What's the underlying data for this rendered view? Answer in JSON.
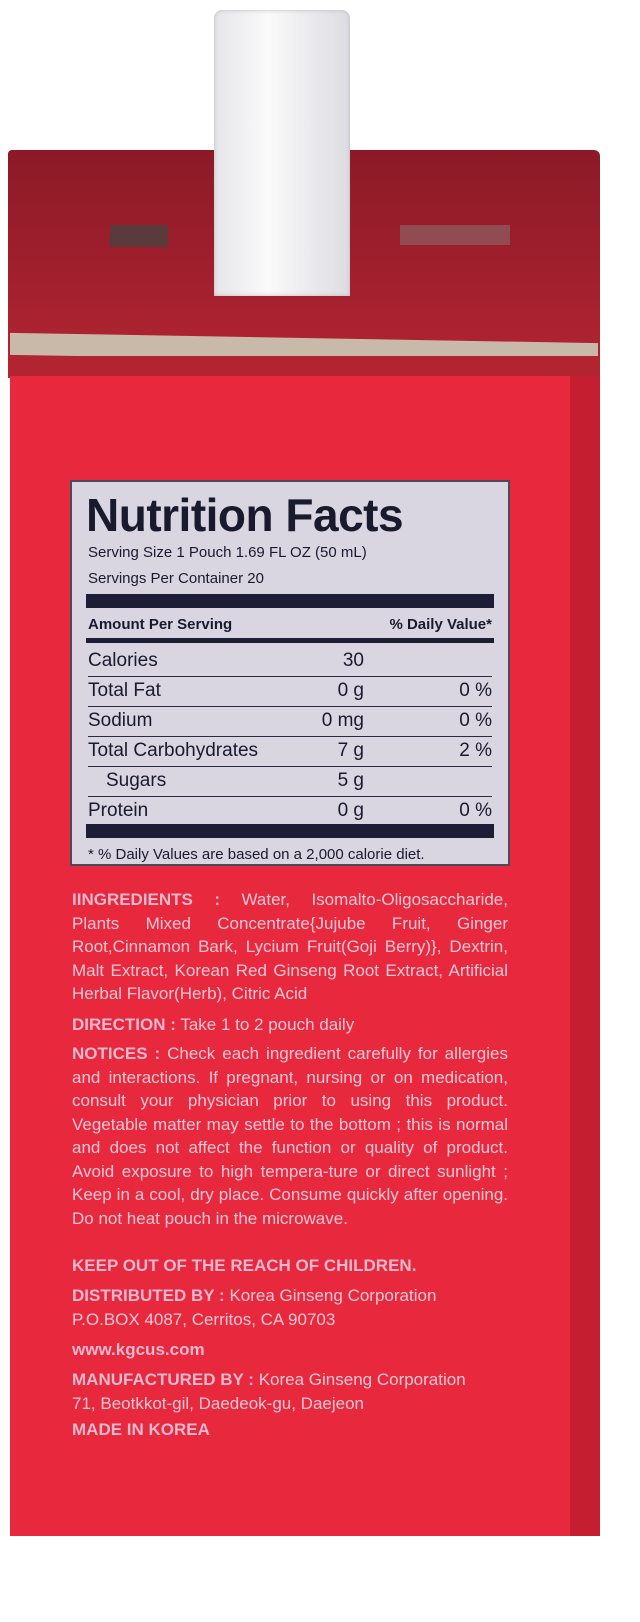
{
  "nutrition": {
    "title": "Nutrition Facts",
    "serving_size": "Serving Size 1 Pouch 1.69 FL OZ (50 mL)",
    "servings_per_container": "Servings Per Container 20",
    "amount_header": "Amount Per Serving",
    "dv_header": "% Daily Value*",
    "rows": [
      {
        "name": "Calories",
        "amount": "30",
        "dv": ""
      },
      {
        "name": "Total Fat",
        "amount": "0 g",
        "dv": "0 %"
      },
      {
        "name": "Sodium",
        "amount": "0 mg",
        "dv": "0 %"
      },
      {
        "name": "Total Carbohydrates",
        "amount": "7 g",
        "dv": "2 %"
      },
      {
        "name": "Sugars",
        "amount": "5 g",
        "dv": ""
      },
      {
        "name": "Protein",
        "amount": "0 g",
        "dv": "0 %"
      }
    ],
    "footnote": "* % Daily Values are based on a 2,000 calorie diet."
  },
  "info": {
    "ingredients_label": "IINGREDIENTS :",
    "ingredients": "Water, Isomalto-Oligosaccharide, Plants Mixed Concentrate{Jujube Fruit, Ginger Root,Cinnamon Bark, Lycium Fruit(Goji Berry)}, Dextrin, Malt Extract, Korean Red Ginseng Root Extract, Artificial Herbal Flavor(Herb), Citric Acid",
    "direction_label": "DIRECTION :",
    "direction": "Take 1 to 2 pouch daily",
    "notices_label": "NOTICES :",
    "notices": "Check each ingredient carefully for allergies and interactions. If pregnant, nursing or on medication, consult your physician prior to using this product. Vegetable matter may settle to the bottom ; this is normal and does not affect the function or quality of product. Avoid exposure to high tempera-ture or direct sunlight ; Keep in a cool, dry place. Consume quickly after opening. Do not heat pouch in the microwave.",
    "warning": "KEEP OUT OF THE REACH OF CHILDREN.",
    "distributed_label": "DISTRIBUTED BY :",
    "distributed": "Korea Ginseng Corporation",
    "distributed_address": "P.O.BOX 4087, Cerritos, CA 90703",
    "website": "www.kgcus.com",
    "manufactured_label": "MANUFACTURED BY :",
    "manufactured": "Korea Ginseng Corporation",
    "manufactured_address": "71, Beotkkot-gil, Daedeok-gu, Daejeon",
    "origin": "MADE IN KOREA"
  },
  "colors": {
    "box_red": "#e8283c",
    "lid_red": "#a3202e",
    "panel": "#d9d6e2",
    "text_pink": "#f2c6d6"
  }
}
